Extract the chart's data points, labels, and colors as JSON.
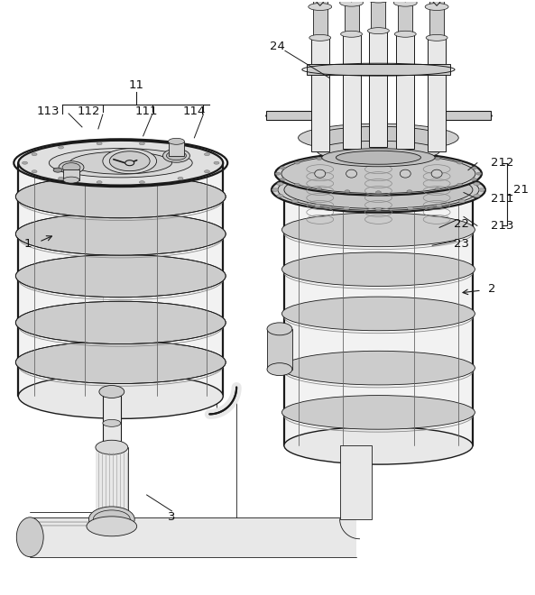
{
  "background_color": "#ffffff",
  "line_color": "#1a1a1a",
  "label_color": "#111111",
  "figsize": [
    5.93,
    6.6
  ],
  "dpi": 100,
  "lw": 1.0,
  "lw_thick": 1.6,
  "lw_thin": 0.6,
  "gray_light": "#e8e8e8",
  "gray_mid": "#cccccc",
  "gray_dark": "#aaaaaa",
  "gray_fill": "#f2f2f2",
  "gray_shade": "#d5d5d5"
}
